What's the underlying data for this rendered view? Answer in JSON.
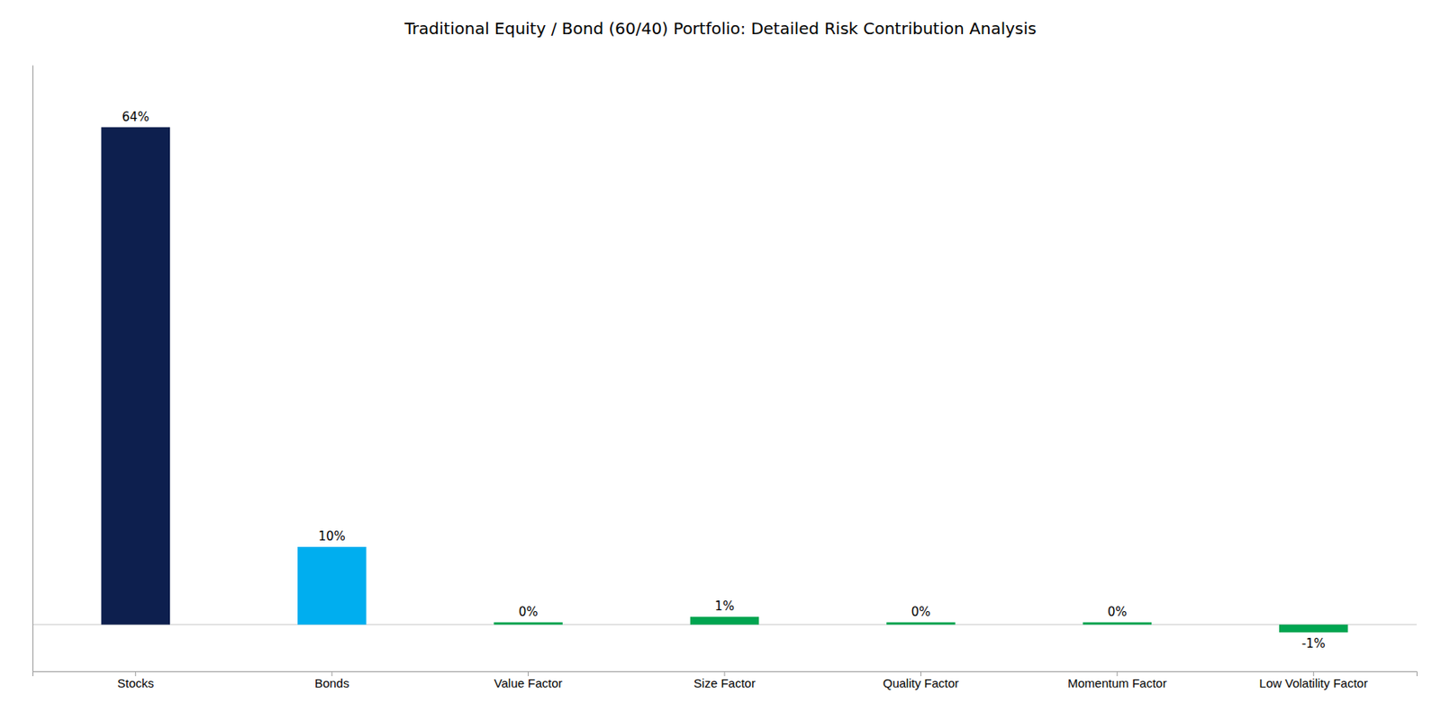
{
  "chart_data": {
    "type": "bar",
    "title": "Traditional Equity / Bond (60/40) Portfolio:  Detailed Risk Contribution Analysis",
    "categories": [
      "Stocks",
      "Bonds",
      "Value Factor",
      "Size Factor",
      "Quality Factor",
      "Momentum Factor",
      "Low Volatility Factor"
    ],
    "values": [
      64,
      10,
      0.3,
      1,
      0.3,
      0.3,
      -1
    ],
    "value_labels": [
      "64%",
      "10%",
      "0%",
      "1%",
      "0%",
      "0%",
      "-1%"
    ],
    "colors": [
      "#0d1f4e",
      "#00aeef",
      "#00a550",
      "#00a550",
      "#00a550",
      "#00a550",
      "#00a550"
    ],
    "ylim": [
      -6,
      72
    ],
    "grid": false,
    "data_labels": true,
    "tick_labels": "x"
  }
}
